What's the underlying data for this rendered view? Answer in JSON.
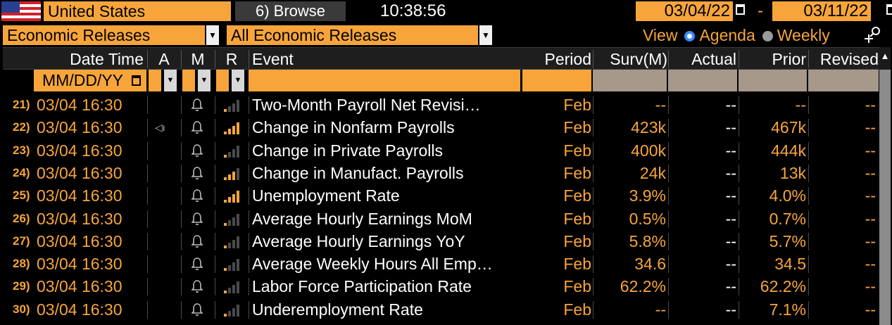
{
  "country": "United States",
  "browse_label": "6) Browse",
  "clock": "10:38:56",
  "date_from": "03/04/22",
  "date_sep": "-",
  "date_to": "03/11/22",
  "category": "Economic Releases",
  "subcategory": "All Economic Releases",
  "view": {
    "label": "View",
    "options": [
      "Agenda",
      "Weekly"
    ],
    "selected": "Agenda"
  },
  "columns": {
    "date_time": "Date Time",
    "a": "A",
    "m": "M",
    "r": "R",
    "event": "Event",
    "period": "Period",
    "surv": "Surv(M)",
    "actual": "Actual",
    "prior": "Prior",
    "revised": "Revised"
  },
  "filter": {
    "date_placeholder": "MM/DD/YY"
  },
  "icons": {
    "alert": "bell-icon",
    "audio": "speaker-icon",
    "relevance": "relevance-bars-icon",
    "calendar": "calendar-icon",
    "zoom": "zoom-icon"
  },
  "colors": {
    "accent": "#f7a53b",
    "relevance_on": "#f7a53b",
    "relevance_off": "#4a4a4a"
  },
  "rows": [
    {
      "num": "21)",
      "date_time": "03/04 16:30",
      "audio": false,
      "relevance": 1,
      "event": "Two-Month Payroll Net Revisi…",
      "period": "Feb",
      "surv": "--",
      "actual": "--",
      "prior": "--",
      "revised": "--"
    },
    {
      "num": "22)",
      "date_time": "03/04 16:30",
      "audio": true,
      "relevance": 4,
      "event": "Change in Nonfarm Payrolls",
      "period": "Feb",
      "surv": "423k",
      "actual": "--",
      "prior": "467k",
      "revised": "--"
    },
    {
      "num": "23)",
      "date_time": "03/04 16:30",
      "audio": false,
      "relevance": 1,
      "event": "Change in Private Payrolls",
      "period": "Feb",
      "surv": "400k",
      "actual": "--",
      "prior": "444k",
      "revised": "--"
    },
    {
      "num": "24)",
      "date_time": "03/04 16:30",
      "audio": false,
      "relevance": 3,
      "event": "Change in Manufact. Payrolls",
      "period": "Feb",
      "surv": "24k",
      "actual": "--",
      "prior": "13k",
      "revised": "--"
    },
    {
      "num": "25)",
      "date_time": "03/04 16:30",
      "audio": false,
      "relevance": 4,
      "event": "Unemployment Rate",
      "period": "Feb",
      "surv": "3.9%",
      "actual": "--",
      "prior": "4.0%",
      "revised": "--"
    },
    {
      "num": "26)",
      "date_time": "03/04 16:30",
      "audio": false,
      "relevance": 1,
      "event": "Average Hourly Earnings MoM",
      "period": "Feb",
      "surv": "0.5%",
      "actual": "--",
      "prior": "0.7%",
      "revised": "--"
    },
    {
      "num": "27)",
      "date_time": "03/04 16:30",
      "audio": false,
      "relevance": 1,
      "event": "Average Hourly Earnings YoY",
      "period": "Feb",
      "surv": "5.8%",
      "actual": "--",
      "prior": "5.7%",
      "revised": "--"
    },
    {
      "num": "28)",
      "date_time": "03/04 16:30",
      "audio": false,
      "relevance": 1,
      "event": "Average Weekly Hours All Emp…",
      "period": "Feb",
      "surv": "34.6",
      "actual": "--",
      "prior": "34.5",
      "revised": "--"
    },
    {
      "num": "29)",
      "date_time": "03/04 16:30",
      "audio": false,
      "relevance": 1,
      "event": "Labor Force Participation Rate",
      "period": "Feb",
      "surv": "62.2%",
      "actual": "--",
      "prior": "62.2%",
      "revised": "--"
    },
    {
      "num": "30)",
      "date_time": "03/04 16:30",
      "audio": false,
      "relevance": 1,
      "event": "Underemployment Rate",
      "period": "Feb",
      "surv": "--",
      "actual": "--",
      "prior": "7.1%",
      "revised": "--"
    }
  ]
}
